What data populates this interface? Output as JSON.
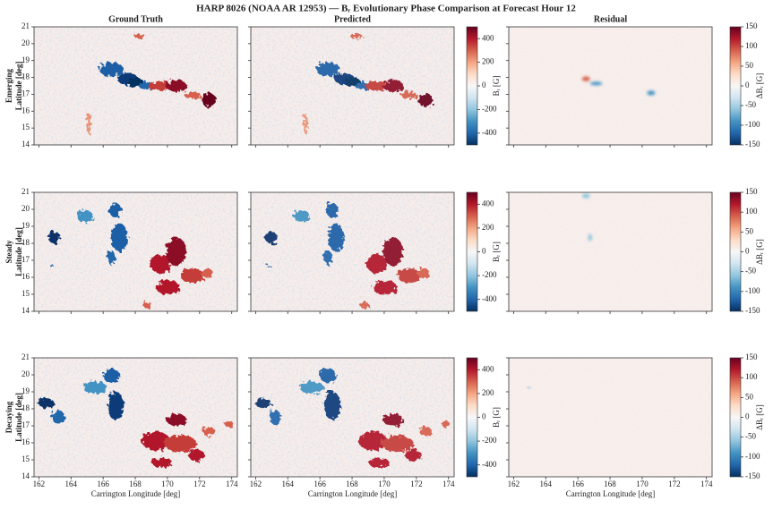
{
  "chart_data": {
    "type": "image-grid",
    "title": "HARP 8026 (NOAA AR 12953) — Bᵣ Evolutionary Phase Comparison at Forecast Hour 12",
    "columns": [
      "Ground Truth",
      "Predicted",
      "Residual"
    ],
    "rows": [
      "Emerging",
      "Steady",
      "Decaying"
    ],
    "ylabel": "Latitude [deg]",
    "xlabel": "Carrington Longitude [deg]",
    "xlim": [
      161.7,
      174.35
    ],
    "xticks": [
      162,
      164,
      166,
      168,
      170,
      172,
      174
    ],
    "ylim": [
      14,
      21
    ],
    "yticks": [
      14,
      15,
      16,
      17,
      18,
      19,
      20,
      21
    ],
    "colorbars": [
      {
        "label": "Bᵣ [G]",
        "lim": [
          -500,
          500
        ],
        "ticks": [
          -400,
          -200,
          0,
          200,
          400
        ]
      },
      {
        "label": "ΔBᵣ [G]",
        "lim": [
          -150,
          150
        ],
        "ticks": [
          -150,
          -100,
          -50,
          0,
          50,
          100,
          150
        ]
      }
    ]
  }
}
